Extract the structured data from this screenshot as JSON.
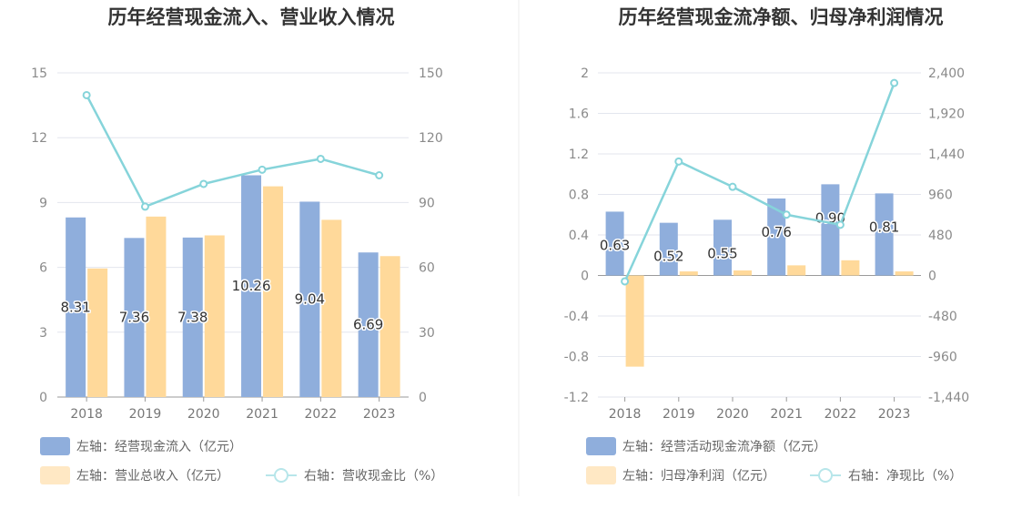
{
  "chart_data": [
    {
      "type": "bar",
      "title": "历年经营现金流入、营业收入情况",
      "categories": [
        "2018",
        "2019",
        "2020",
        "2021",
        "2022",
        "2023"
      ],
      "left_axis": {
        "ylim": [
          0,
          15
        ],
        "ticks": [
          "0",
          "3",
          "6",
          "9",
          "12",
          "15"
        ]
      },
      "right_axis": {
        "ylim": [
          0,
          150
        ],
        "ticks": [
          "0",
          "30",
          "60",
          "90",
          "120",
          "150"
        ]
      },
      "series": [
        {
          "name": "左轴：经营现金流入（亿元）",
          "type": "bar",
          "axis": "left",
          "color": "#8FAEDC",
          "values": [
            8.31,
            7.36,
            7.38,
            10.26,
            9.04,
            6.69
          ],
          "labels": [
            "8.31",
            "7.36",
            "7.38",
            "10.26",
            "9.04",
            "6.69"
          ]
        },
        {
          "name": "左轴：营业总收入（亿元）",
          "type": "bar",
          "axis": "left",
          "color": "#FFD99A",
          "values": [
            5.95,
            8.35,
            7.48,
            9.75,
            8.2,
            6.52
          ]
        },
        {
          "name": "右轴：营收现金比（%）",
          "type": "line",
          "axis": "right",
          "color": "#86D4DA",
          "values": [
            139.7,
            88.1,
            98.6,
            105.2,
            110.2,
            102.6
          ]
        }
      ],
      "legend_position": "bottom-left",
      "grid": true
    },
    {
      "type": "bar",
      "title": "历年经营现金流净额、归母净利润情况",
      "categories": [
        "2018",
        "2019",
        "2020",
        "2021",
        "2022",
        "2023"
      ],
      "left_axis": {
        "ylim": [
          -1.2,
          2
        ],
        "ticks": [
          "-1.2",
          "-0.8",
          "-0.4",
          "0",
          "0.4",
          "0.8",
          "1.2",
          "1.6",
          "2"
        ]
      },
      "right_axis": {
        "ylim": [
          -1440,
          2400
        ],
        "ticks": [
          "-1,440",
          "-960",
          "-480",
          "0",
          "480",
          "960",
          "1,440",
          "1,920",
          "2,400"
        ]
      },
      "series": [
        {
          "name": "左轴：经营活动现金流净额（亿元）",
          "type": "bar",
          "axis": "left",
          "color": "#8FAEDC",
          "values": [
            0.63,
            0.52,
            0.55,
            0.76,
            0.9,
            0.81
          ],
          "labels": [
            "0.63",
            "0.52",
            "0.55",
            "0.76",
            "0.90",
            "0.81"
          ]
        },
        {
          "name": "左轴：归母净利润（亿元）",
          "type": "bar",
          "axis": "left",
          "color": "#FFD99A",
          "values": [
            -0.9,
            0.04,
            0.05,
            0.1,
            0.15,
            0.04
          ]
        },
        {
          "name": "右轴：净现比（%）",
          "type": "line",
          "axis": "right",
          "color": "#86D4DA",
          "values": [
            -70,
            1350,
            1050,
            720,
            600,
            2280
          ]
        }
      ],
      "legend_position": "bottom-left",
      "grid": true
    }
  ]
}
